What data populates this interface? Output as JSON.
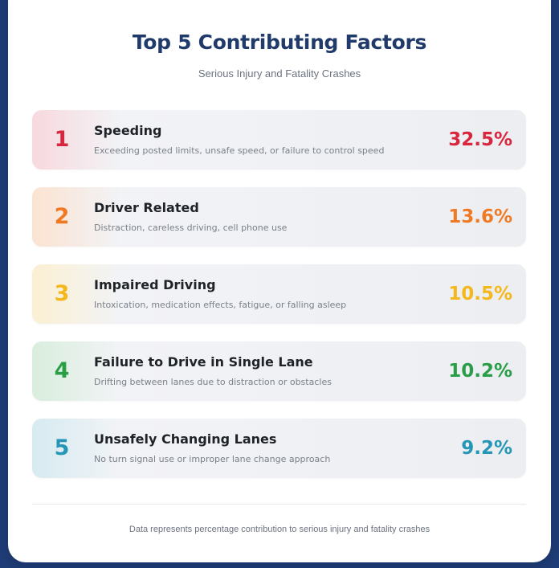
{
  "header": {
    "title": "Top 5 Contributing Factors",
    "subtitle": "Serious Injury and Fatality Crashes"
  },
  "factors": [
    {
      "rank": "1",
      "name": "Speeding",
      "description": "Exceeding posted limits, unsafe speed, or failure to control speed",
      "percent": "32.5%",
      "accent": "#d7263d",
      "tint": "#f7d9de"
    },
    {
      "rank": "2",
      "name": "Driver Related",
      "description": "Distraction, careless driving, cell phone use",
      "percent": "13.6%",
      "accent": "#f07a24",
      "tint": "#fbe3d2"
    },
    {
      "rank": "3",
      "name": "Impaired Driving",
      "description": "Intoxication, medication effects, fatigue, or falling asleep",
      "percent": "10.5%",
      "accent": "#f5b81c",
      "tint": "#fbf0d3"
    },
    {
      "rank": "4",
      "name": "Failure to Drive in Single Lane",
      "description": "Drifting between lanes due to distraction or obstacles",
      "percent": "10.2%",
      "accent": "#2a9d47",
      "tint": "#d9eedd"
    },
    {
      "rank": "5",
      "name": "Unsafely Changing Lanes",
      "description": "No turn signal use or improper lane change approach",
      "percent": "9.2%",
      "accent": "#2596b5",
      "tint": "#d6ebf1"
    }
  ],
  "footer": {
    "note": "Data represents percentage contribution to serious injury and fatality crashes"
  },
  "colors": {
    "background": "#1f3d78",
    "title": "#1f3a6b"
  },
  "chart_data": {
    "type": "table",
    "title": "Top 5 Contributing Factors",
    "subtitle": "Serious Injury and Fatality Crashes",
    "categories": [
      "Speeding",
      "Driver Related",
      "Impaired Driving",
      "Failure to Drive in Single Lane",
      "Unsafely Changing Lanes"
    ],
    "values": [
      32.5,
      13.6,
      10.5,
      10.2,
      9.2
    ],
    "unit": "%",
    "ranks": [
      1,
      2,
      3,
      4,
      5
    ],
    "descriptions": [
      "Exceeding posted limits, unsafe speed, or failure to control speed",
      "Distraction, careless driving, cell phone use",
      "Intoxication, medication effects, fatigue, or falling asleep",
      "Drifting between lanes due to distraction or obstacles",
      "No turn signal use or improper lane change approach"
    ],
    "annotation": "Data represents percentage contribution to serious injury and fatality crashes"
  }
}
